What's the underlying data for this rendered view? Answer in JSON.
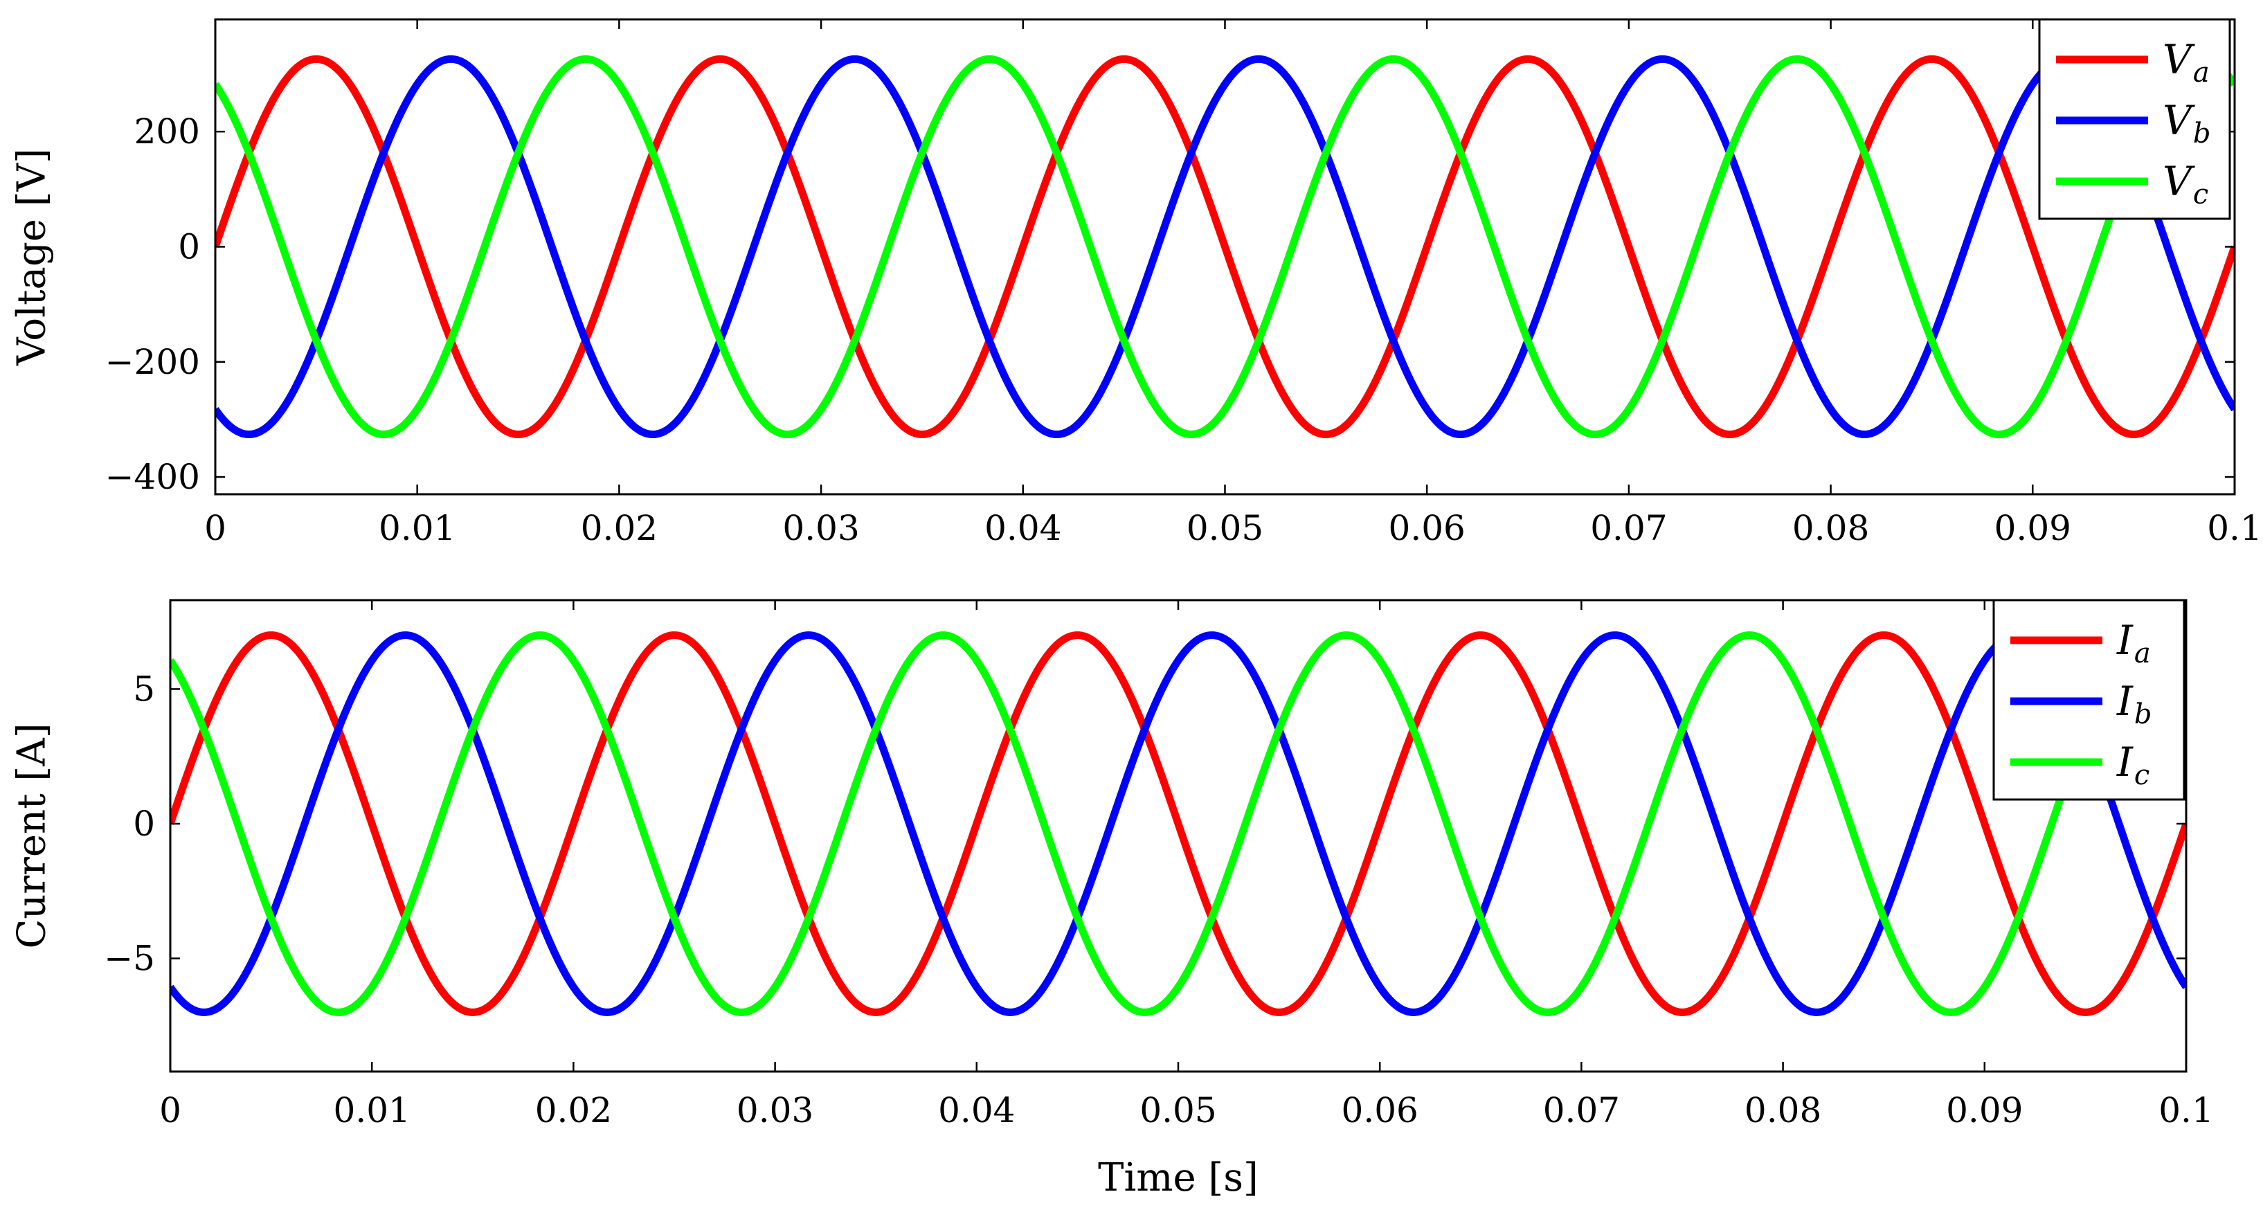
{
  "chart_data": [
    {
      "type": "line",
      "id": "voltage",
      "ylabel": "Voltage [V]",
      "xlabel": "",
      "xlim": [
        0,
        0.1
      ],
      "ylim": [
        -430,
        395
      ],
      "x_ticks": [
        0,
        0.01,
        0.02,
        0.03,
        0.04,
        0.05,
        0.06,
        0.07,
        0.08,
        0.09,
        0.1
      ],
      "x_tick_labels": [
        "0",
        "0.01",
        "0.02",
        "0.03",
        "0.04",
        "0.05",
        "0.06",
        "0.07",
        "0.08",
        "0.09",
        "0.1"
      ],
      "y_ticks": [
        -400,
        -200,
        0,
        200
      ],
      "y_tick_labels": [
        "−400",
        "−200",
        "0",
        "200"
      ],
      "grid": false,
      "legend_position": "top-right",
      "series": [
        {
          "name": "Va",
          "symbol": "V",
          "subscript": "a",
          "color": "#ff0000",
          "amplitude": 326,
          "frequency_hz": 50,
          "phase_deg": 0
        },
        {
          "name": "Vb",
          "symbol": "V",
          "subscript": "b",
          "color": "#0000ff",
          "amplitude": 326,
          "frequency_hz": 50,
          "phase_deg": -120
        },
        {
          "name": "Vc",
          "symbol": "V",
          "subscript": "c",
          "color": "#00ff00",
          "amplitude": 326,
          "frequency_hz": 50,
          "phase_deg": 120
        }
      ]
    },
    {
      "type": "line",
      "id": "current",
      "ylabel": "Current [A]",
      "xlabel": "Time [s]",
      "xlim": [
        0,
        0.1
      ],
      "ylim": [
        -9.2,
        8.3
      ],
      "x_ticks": [
        0,
        0.01,
        0.02,
        0.03,
        0.04,
        0.05,
        0.06,
        0.07,
        0.08,
        0.09,
        0.1
      ],
      "x_tick_labels": [
        "0",
        "0.01",
        "0.02",
        "0.03",
        "0.04",
        "0.05",
        "0.06",
        "0.07",
        "0.08",
        "0.09",
        "0.1"
      ],
      "y_ticks": [
        -5,
        0,
        5
      ],
      "y_tick_labels": [
        "−5",
        "0",
        "5"
      ],
      "grid": false,
      "legend_position": "top-right",
      "series": [
        {
          "name": "Ia",
          "symbol": "I",
          "subscript": "a",
          "color": "#ff0000",
          "amplitude": 7,
          "frequency_hz": 50,
          "phase_deg": 0
        },
        {
          "name": "Ib",
          "symbol": "I",
          "subscript": "b",
          "color": "#0000ff",
          "amplitude": 7,
          "frequency_hz": 50,
          "phase_deg": -120
        },
        {
          "name": "Ic",
          "symbol": "I",
          "subscript": "c",
          "color": "#00ff00",
          "amplitude": 7,
          "frequency_hz": 50,
          "phase_deg": 120
        }
      ]
    }
  ]
}
